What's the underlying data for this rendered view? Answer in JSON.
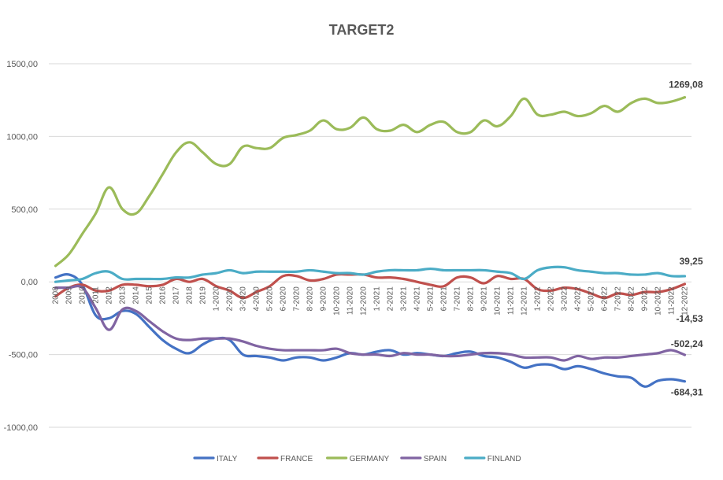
{
  "chart_data": {
    "type": "line",
    "title": "TARGET2",
    "xlabel": "",
    "ylabel": "",
    "ylim": [
      -1000,
      1500
    ],
    "y_ticks": [
      "1500,00",
      "1000,00",
      "500,00",
      "0,00",
      "-500,00",
      "-1000,00"
    ],
    "y_tick_values": [
      1500,
      1000,
      500,
      0,
      -500,
      -1000
    ],
    "grid": true,
    "legend_position": "bottom",
    "categories": [
      "2008",
      "2009",
      "2010",
      "2011",
      "2012",
      "2013",
      "2014",
      "2015",
      "2016",
      "2017",
      "2018",
      "2019",
      "1-2020",
      "2-2020",
      "3-2020",
      "4-2020",
      "5-2020",
      "6-2020",
      "7-2020",
      "8-2020",
      "9-2020",
      "10-2020",
      "11-2020",
      "12-2020",
      "1-2021",
      "2-2021",
      "3-2021",
      "4-2021",
      "5-2021",
      "6-2021",
      "7-2021",
      "8-2021",
      "9-2021",
      "10-2021",
      "11-2021",
      "12-2021",
      "1-2022",
      "2-2022",
      "3-2022",
      "4-2022",
      "5-2022",
      "6-2022",
      "7-2022",
      "8-2022",
      "9-2022",
      "10-2022",
      "11-2022",
      "12-2022"
    ],
    "series": [
      {
        "name": "ITALY",
        "color": "#4472C4",
        "values": [
          30,
          50,
          -20,
          -230,
          -250,
          -200,
          -220,
          -310,
          -400,
          -460,
          -490,
          -430,
          -390,
          -400,
          -500,
          -510,
          -520,
          -540,
          -520,
          -520,
          -540,
          -520,
          -490,
          -500,
          -480,
          -470,
          -500,
          -490,
          -500,
          -510,
          -490,
          -480,
          -510,
          -520,
          -550,
          -590,
          -570,
          -570,
          -600,
          -580,
          -600,
          -630,
          -650,
          -660,
          -720,
          -680,
          -670,
          -684.31
        ]
      },
      {
        "name": "FRANCE",
        "color": "#C0504D",
        "values": [
          -100,
          -40,
          -20,
          -60,
          -60,
          -20,
          -20,
          -30,
          -20,
          20,
          0,
          20,
          -30,
          -60,
          -110,
          -70,
          -30,
          40,
          40,
          10,
          20,
          50,
          50,
          50,
          30,
          30,
          20,
          0,
          -20,
          -30,
          30,
          30,
          -10,
          40,
          20,
          20,
          -50,
          -60,
          -40,
          -50,
          -80,
          -110,
          -80,
          -90,
          -70,
          -70,
          -50,
          -14.53
        ]
      },
      {
        "name": "GERMANY",
        "color": "#9BBB59",
        "values": [
          110,
          190,
          330,
          470,
          650,
          500,
          470,
          590,
          740,
          890,
          960,
          890,
          810,
          810,
          930,
          920,
          920,
          990,
          1010,
          1040,
          1110,
          1050,
          1060,
          1130,
          1050,
          1040,
          1080,
          1030,
          1080,
          1100,
          1030,
          1030,
          1110,
          1070,
          1140,
          1260,
          1150,
          1150,
          1170,
          1140,
          1160,
          1210,
          1170,
          1230,
          1260,
          1230,
          1240,
          1269.08
        ]
      },
      {
        "name": "SPAIN",
        "color": "#8064A2",
        "values": [
          -40,
          -40,
          -40,
          -180,
          -330,
          -190,
          -200,
          -270,
          -340,
          -390,
          -400,
          -390,
          -390,
          -390,
          -410,
          -440,
          -460,
          -470,
          -470,
          -470,
          -470,
          -460,
          -490,
          -500,
          -500,
          -510,
          -490,
          -500,
          -500,
          -510,
          -510,
          -500,
          -490,
          -490,
          -500,
          -520,
          -520,
          -520,
          -540,
          -510,
          -530,
          -520,
          -520,
          -510,
          -500,
          -490,
          -470,
          -502.24
        ]
      },
      {
        "name": "FINLAND",
        "color": "#4BACC6",
        "values": [
          0,
          10,
          20,
          60,
          70,
          20,
          20,
          20,
          20,
          30,
          30,
          50,
          60,
          80,
          60,
          70,
          70,
          70,
          70,
          80,
          70,
          60,
          60,
          50,
          70,
          80,
          80,
          80,
          90,
          80,
          80,
          80,
          80,
          70,
          60,
          20,
          80,
          100,
          100,
          80,
          70,
          60,
          60,
          50,
          50,
          60,
          40,
          39.25
        ]
      }
    ],
    "end_labels": [
      "1269,08",
      "39,25",
      "-14,53",
      "-502,24",
      "-684,31"
    ]
  }
}
